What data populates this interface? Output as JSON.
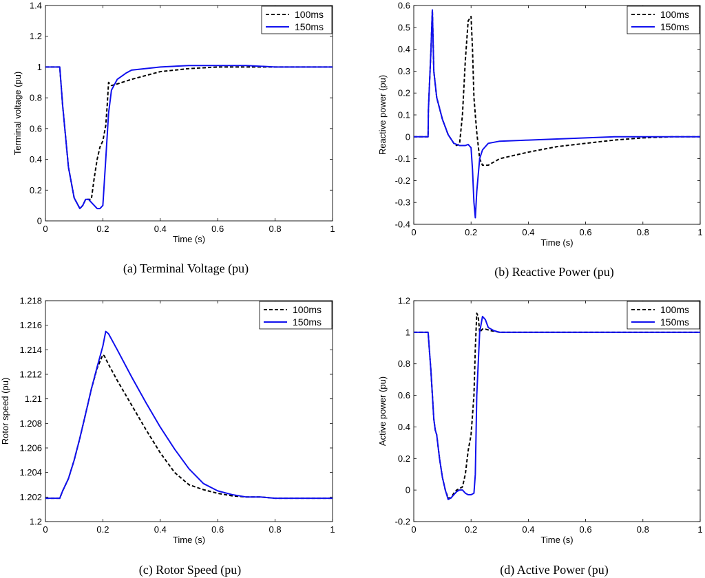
{
  "colors": {
    "series_100ms": "#000000",
    "series_150ms": "#1010ee",
    "axes": "#000000",
    "background": "#ffffff"
  },
  "chart_data": [
    {
      "id": "a",
      "type": "line",
      "caption": "(a)  Terminal Voltage (pu)",
      "xlabel": "Time (s)",
      "ylabel": "Terminal voltage (pu)",
      "xlim": [
        0,
        1
      ],
      "ylim": [
        0,
        1.4
      ],
      "xticks": [
        0,
        0.2,
        0.4,
        0.6,
        0.8,
        1
      ],
      "xtick_labels": [
        "0",
        "0.2",
        "0.4",
        "0.6",
        "0.8",
        "1"
      ],
      "yticks": [
        0,
        0.2,
        0.4,
        0.6,
        0.8,
        1,
        1.2,
        1.4
      ],
      "ytick_labels": [
        "0",
        "0.2",
        "0.4",
        "0.6",
        "0.8",
        "1",
        "1.2",
        "1.4"
      ],
      "legend": "top-right",
      "series": [
        {
          "name": "100ms",
          "style": "dashed",
          "x": [
            0,
            0.05,
            0.06,
            0.08,
            0.1,
            0.12,
            0.13,
            0.14,
            0.15,
            0.16,
            0.17,
            0.18,
            0.19,
            0.2,
            0.21,
            0.215,
            0.22,
            0.23,
            0.25,
            0.3,
            0.4,
            0.5,
            0.6,
            0.7,
            0.8,
            0.9,
            1.0
          ],
          "y": [
            1.0,
            1.0,
            0.75,
            0.35,
            0.15,
            0.08,
            0.1,
            0.14,
            0.14,
            0.14,
            0.28,
            0.4,
            0.48,
            0.52,
            0.62,
            0.75,
            0.9,
            0.88,
            0.89,
            0.92,
            0.97,
            0.99,
            1.0,
            1.0,
            1.0,
            1.0,
            1.0
          ]
        },
        {
          "name": "150ms",
          "style": "solid",
          "x": [
            0,
            0.05,
            0.06,
            0.08,
            0.1,
            0.12,
            0.13,
            0.14,
            0.15,
            0.16,
            0.17,
            0.18,
            0.19,
            0.2,
            0.21,
            0.22,
            0.23,
            0.25,
            0.28,
            0.3,
            0.4,
            0.5,
            0.6,
            0.7,
            0.8,
            0.9,
            1.0
          ],
          "y": [
            1.0,
            1.0,
            0.75,
            0.35,
            0.15,
            0.08,
            0.1,
            0.14,
            0.14,
            0.12,
            0.1,
            0.08,
            0.08,
            0.1,
            0.4,
            0.7,
            0.85,
            0.92,
            0.96,
            0.98,
            1.0,
            1.01,
            1.01,
            1.01,
            1.0,
            1.0,
            1.0
          ]
        }
      ]
    },
    {
      "id": "b",
      "type": "line",
      "caption": "(b)  Reactive Power (pu)",
      "xlabel": "Time (s)",
      "ylabel": "Reactive power (pu)",
      "xlim": [
        0,
        1
      ],
      "ylim": [
        -0.4,
        0.6
      ],
      "xticks": [
        0,
        0.2,
        0.4,
        0.6,
        0.8,
        1
      ],
      "xtick_labels": [
        "0",
        "0.2",
        "0.4",
        "0.6",
        "0.8",
        "1"
      ],
      "yticks": [
        -0.4,
        -0.3,
        -0.2,
        -0.1,
        0,
        0.1,
        0.2,
        0.3,
        0.4,
        0.5,
        0.6
      ],
      "ytick_labels": [
        "-0.4",
        "-0.3",
        "-0.2",
        "-0.1",
        "0",
        "0.1",
        "0.2",
        "0.3",
        "0.4",
        "0.5",
        "0.6"
      ],
      "legend": "top-right",
      "series": [
        {
          "name": "100ms",
          "style": "dashed",
          "x": [
            0,
            0.05,
            0.051,
            0.06,
            0.065,
            0.07,
            0.08,
            0.1,
            0.12,
            0.14,
            0.15,
            0.16,
            0.17,
            0.18,
            0.19,
            0.2,
            0.205,
            0.21,
            0.215,
            0.22,
            0.23,
            0.24,
            0.26,
            0.3,
            0.4,
            0.5,
            0.6,
            0.7,
            0.8,
            0.9,
            1.0
          ],
          "y": [
            0,
            0,
            0.12,
            0.4,
            0.58,
            0.3,
            0.18,
            0.08,
            0.01,
            -0.03,
            -0.04,
            -0.03,
            0.1,
            0.35,
            0.53,
            0.55,
            0.4,
            0.18,
            0.1,
            0.02,
            -0.1,
            -0.13,
            -0.13,
            -0.1,
            -0.07,
            -0.045,
            -0.03,
            -0.015,
            -0.005,
            0,
            0
          ]
        },
        {
          "name": "150ms",
          "style": "solid",
          "x": [
            0,
            0.05,
            0.051,
            0.06,
            0.065,
            0.07,
            0.08,
            0.1,
            0.12,
            0.14,
            0.16,
            0.18,
            0.19,
            0.2,
            0.205,
            0.21,
            0.215,
            0.22,
            0.23,
            0.24,
            0.26,
            0.3,
            0.4,
            0.5,
            0.6,
            0.7,
            0.8,
            0.9,
            1.0
          ],
          "y": [
            0,
            0,
            0.12,
            0.4,
            0.58,
            0.3,
            0.18,
            0.08,
            0.01,
            -0.03,
            -0.04,
            -0.04,
            -0.035,
            -0.05,
            -0.15,
            -0.3,
            -0.37,
            -0.25,
            -0.1,
            -0.06,
            -0.03,
            -0.02,
            -0.015,
            -0.01,
            -0.005,
            0,
            0,
            0,
            0
          ]
        }
      ]
    },
    {
      "id": "c",
      "type": "line",
      "caption": "(c)  Rotor Speed (pu)",
      "xlabel": "Time (s)",
      "ylabel": "Rotor speed (pu)",
      "xlim": [
        0,
        1
      ],
      "ylim": [
        1.2,
        1.218
      ],
      "xticks": [
        0,
        0.2,
        0.4,
        0.6,
        0.8,
        1
      ],
      "xtick_labels": [
        "0",
        "0.2",
        "0.4",
        "0.6",
        "0.8",
        "1"
      ],
      "yticks": [
        1.2,
        1.202,
        1.204,
        1.206,
        1.208,
        1.21,
        1.212,
        1.214,
        1.216,
        1.218
      ],
      "ytick_labels": [
        "1.2",
        "1.202",
        "1.204",
        "1.206",
        "1.208",
        "1.21",
        "1.212",
        "1.214",
        "1.216",
        "1.218"
      ],
      "legend": "top-right",
      "series": [
        {
          "name": "100ms",
          "style": "dashed",
          "x": [
            0,
            0.05,
            0.06,
            0.08,
            0.1,
            0.12,
            0.14,
            0.16,
            0.18,
            0.2,
            0.205,
            0.22,
            0.25,
            0.3,
            0.35,
            0.4,
            0.45,
            0.5,
            0.55,
            0.6,
            0.65,
            0.7,
            0.75,
            0.8,
            0.9,
            1.0
          ],
          "y": [
            1.2019,
            1.2019,
            1.2025,
            1.2035,
            1.205,
            1.2068,
            1.2088,
            1.2108,
            1.2125,
            1.2136,
            1.2135,
            1.2128,
            1.2115,
            1.2095,
            1.2075,
            1.2056,
            1.204,
            1.203,
            1.2026,
            1.2023,
            1.2021,
            1.202,
            1.202,
            1.2019,
            1.2019,
            1.2019
          ]
        },
        {
          "name": "150ms",
          "style": "solid",
          "x": [
            0,
            0.05,
            0.06,
            0.08,
            0.1,
            0.12,
            0.14,
            0.16,
            0.18,
            0.2,
            0.21,
            0.22,
            0.25,
            0.3,
            0.35,
            0.4,
            0.45,
            0.5,
            0.55,
            0.6,
            0.65,
            0.7,
            0.75,
            0.8,
            0.9,
            1.0
          ],
          "y": [
            1.2019,
            1.2019,
            1.2025,
            1.2035,
            1.205,
            1.2068,
            1.2088,
            1.2108,
            1.2126,
            1.2143,
            1.2155,
            1.2153,
            1.214,
            1.2118,
            1.2097,
            1.2077,
            1.2059,
            1.2043,
            1.2031,
            1.2025,
            1.2022,
            1.202,
            1.202,
            1.2019,
            1.2019,
            1.2019
          ]
        }
      ]
    },
    {
      "id": "d",
      "type": "line",
      "caption": "(d)  Active Power (pu)",
      "xlabel": "Time (s)",
      "ylabel": "Active power (pu)",
      "xlim": [
        0,
        1
      ],
      "ylim": [
        -0.2,
        1.2
      ],
      "xticks": [
        0,
        0.2,
        0.4,
        0.6,
        0.8,
        1
      ],
      "xtick_labels": [
        "0",
        "0.2",
        "0.4",
        "0.6",
        "0.8",
        "1"
      ],
      "yticks": [
        -0.2,
        0,
        0.2,
        0.4,
        0.6,
        0.8,
        1,
        1.2
      ],
      "ytick_labels": [
        "-0.2",
        "0",
        "0.2",
        "0.4",
        "0.6",
        "0.8",
        "1",
        "1.2"
      ],
      "legend": "top-right",
      "series": [
        {
          "name": "100ms",
          "style": "dashed",
          "x": [
            0,
            0.05,
            0.06,
            0.07,
            0.075,
            0.08,
            0.09,
            0.1,
            0.11,
            0.12,
            0.13,
            0.14,
            0.15,
            0.16,
            0.17,
            0.18,
            0.19,
            0.2,
            0.21,
            0.215,
            0.22,
            0.225,
            0.23,
            0.24,
            0.25,
            0.27,
            0.3,
            0.4,
            0.5,
            0.6,
            0.8,
            1.0
          ],
          "y": [
            1.0,
            1.0,
            0.75,
            0.45,
            0.38,
            0.35,
            0.2,
            0.08,
            0.0,
            -0.05,
            -0.05,
            -0.02,
            0.0,
            0.01,
            0.02,
            0.1,
            0.25,
            0.35,
            0.6,
            0.9,
            1.12,
            1.1,
            1.0,
            1.02,
            1.02,
            1.01,
            1.0,
            1.0,
            1.0,
            1.0,
            1.0,
            1.0
          ]
        },
        {
          "name": "150ms",
          "style": "solid",
          "x": [
            0,
            0.05,
            0.06,
            0.07,
            0.075,
            0.08,
            0.09,
            0.1,
            0.11,
            0.12,
            0.13,
            0.14,
            0.15,
            0.16,
            0.17,
            0.18,
            0.19,
            0.2,
            0.21,
            0.215,
            0.22,
            0.23,
            0.24,
            0.25,
            0.26,
            0.28,
            0.3,
            0.4,
            0.5,
            0.6,
            0.8,
            1.0
          ],
          "y": [
            1.0,
            1.0,
            0.75,
            0.45,
            0.38,
            0.35,
            0.2,
            0.08,
            0.0,
            -0.06,
            -0.05,
            -0.03,
            -0.01,
            0.0,
            0.0,
            -0.02,
            -0.03,
            -0.03,
            -0.02,
            0.1,
            0.6,
            1.0,
            1.1,
            1.08,
            1.03,
            1.01,
            1.0,
            1.0,
            1.0,
            1.0,
            1.0,
            1.0
          ]
        }
      ]
    }
  ]
}
